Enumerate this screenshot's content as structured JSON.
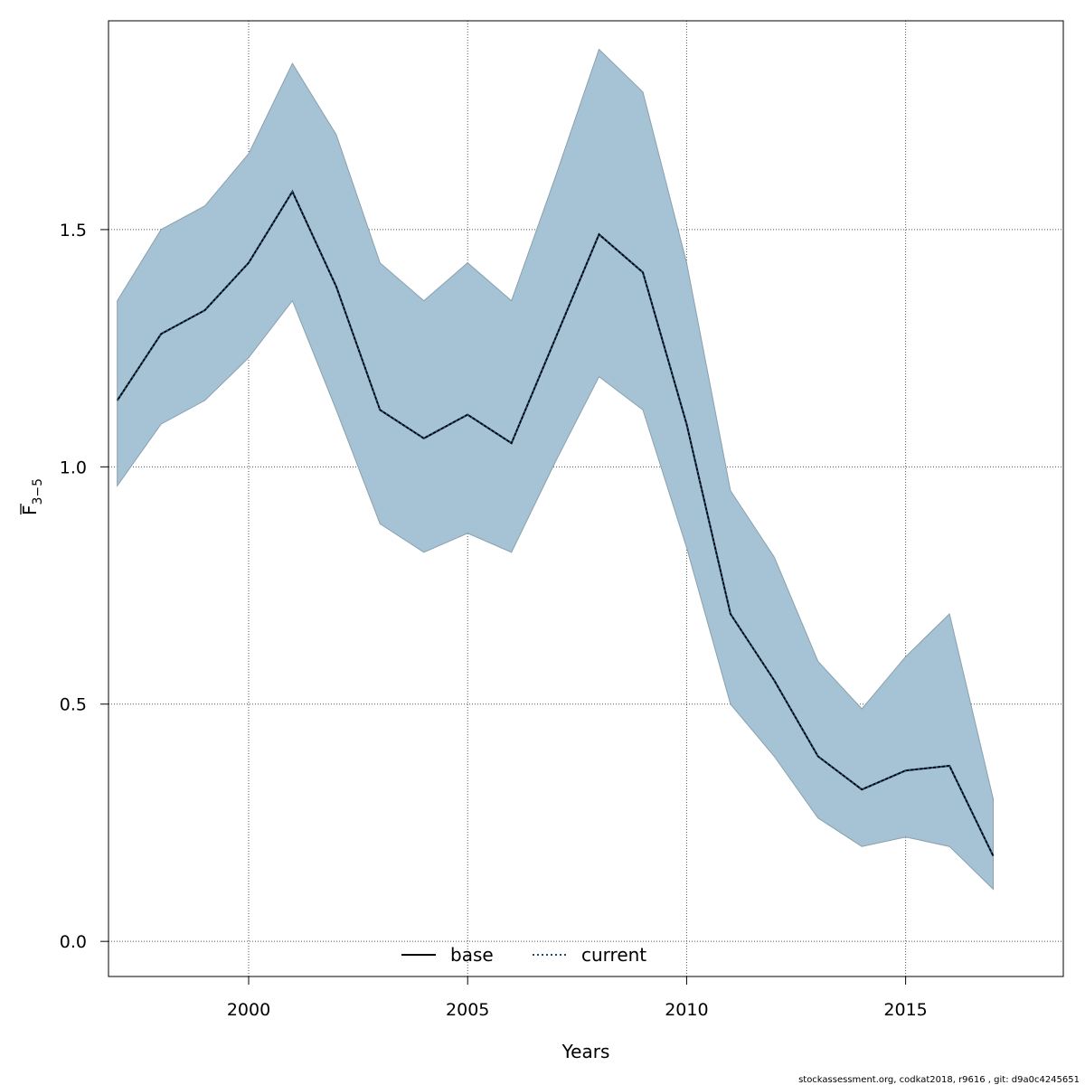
{
  "chart_data": {
    "type": "area",
    "xlabel": "Years",
    "ylabel": {
      "main": "F",
      "subscript": "3−5"
    },
    "xlim": [
      1996.8,
      2018.6
    ],
    "ylim": [
      -0.074,
      1.94
    ],
    "xticks": [
      2000,
      2005,
      2010,
      2015
    ],
    "yticks": [
      0.0,
      0.5,
      1.0,
      1.5
    ],
    "ytick_labels": [
      "0.0",
      "0.5",
      "1.0",
      "1.5"
    ],
    "grid": true,
    "x": [
      1997,
      1998,
      1999,
      2000,
      2001,
      2002,
      2003,
      2004,
      2005,
      2006,
      2007,
      2008,
      2009,
      2010,
      2011,
      2012,
      2013,
      2014,
      2015,
      2016,
      2017
    ],
    "series": [
      {
        "name": "base",
        "style": "solid",
        "color": "#000000",
        "values": [
          1.14,
          1.28,
          1.33,
          1.43,
          1.58,
          1.38,
          1.12,
          1.06,
          1.11,
          1.05,
          1.27,
          1.49,
          1.41,
          1.09,
          0.69,
          0.55,
          0.39,
          0.32,
          0.36,
          0.37,
          0.18
        ]
      },
      {
        "name": "current",
        "style": "dotted",
        "color": "#1f4e79",
        "values": [
          1.14,
          1.28,
          1.33,
          1.43,
          1.58,
          1.38,
          1.12,
          1.06,
          1.11,
          1.05,
          1.27,
          1.49,
          1.41,
          1.09,
          0.69,
          0.55,
          0.39,
          0.32,
          0.36,
          0.37,
          0.18
        ]
      }
    ],
    "band": {
      "color": "#a5c3d5",
      "lower": [
        0.96,
        1.09,
        1.14,
        1.23,
        1.35,
        1.12,
        0.88,
        0.82,
        0.86,
        0.82,
        1.01,
        1.19,
        1.12,
        0.83,
        0.5,
        0.39,
        0.26,
        0.2,
        0.22,
        0.2,
        0.11
      ],
      "upper": [
        1.35,
        1.5,
        1.55,
        1.66,
        1.85,
        1.7,
        1.43,
        1.35,
        1.43,
        1.35,
        1.61,
        1.88,
        1.79,
        1.43,
        0.95,
        0.81,
        0.59,
        0.49,
        0.6,
        0.69,
        0.3
      ]
    },
    "legend": {
      "position": "bottom-center",
      "items": [
        "base",
        "current"
      ]
    }
  },
  "footer": "stockassessment.org, codkat2018, r9616 , git: d9a0c4245651"
}
